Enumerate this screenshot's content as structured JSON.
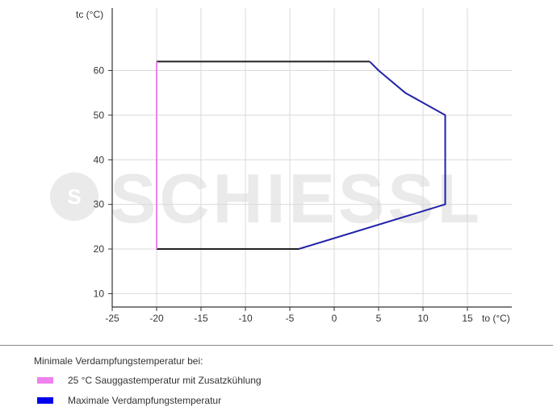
{
  "chart_data": {
    "type": "line",
    "title": "",
    "xlabel": "to (°C)",
    "ylabel": "tc (°C)",
    "xlim": [
      -25,
      20
    ],
    "ylim": [
      7,
      74
    ],
    "xticks": [
      -25,
      -20,
      -15,
      -10,
      -5,
      0,
      5,
      10,
      15
    ],
    "yticks": [
      10,
      20,
      30,
      40,
      50,
      60
    ],
    "grid": true,
    "legend_placement": "below",
    "series": [
      {
        "name": "25 °C Sauggastemperatur mit Zusatzkühlung",
        "color": "#ee82ee",
        "points": [
          [
            -20,
            20
          ],
          [
            -20,
            62
          ]
        ]
      },
      {
        "name": "Maximale Verdampfungstemperatur",
        "color": "#2222aa",
        "points": [
          [
            4,
            62
          ],
          [
            5,
            60
          ],
          [
            8,
            55
          ],
          [
            12.5,
            50
          ],
          [
            12.5,
            30
          ],
          [
            -4,
            20
          ]
        ]
      },
      {
        "name": "",
        "color": "#222222",
        "points": [
          [
            -20,
            62
          ],
          [
            4,
            62
          ]
        ]
      },
      {
        "name": "",
        "color": "#222222",
        "points": [
          [
            -20,
            20
          ],
          [
            -4,
            20
          ]
        ]
      }
    ]
  },
  "legend": {
    "title": "Minimale Verdampfungstemperatur bei:",
    "items": [
      {
        "label": "25 °C Sauggastemperatur mit Zusatzkühlung",
        "color": "#ee82ee"
      },
      {
        "label": "Maximale Verdampfungstemperatur",
        "color": "#0000ee"
      }
    ]
  },
  "watermark": {
    "text": "SCHIESSL",
    "logo_letter": "S"
  },
  "colors": {
    "grid": "#d9d9d9",
    "axis": "#333333"
  }
}
